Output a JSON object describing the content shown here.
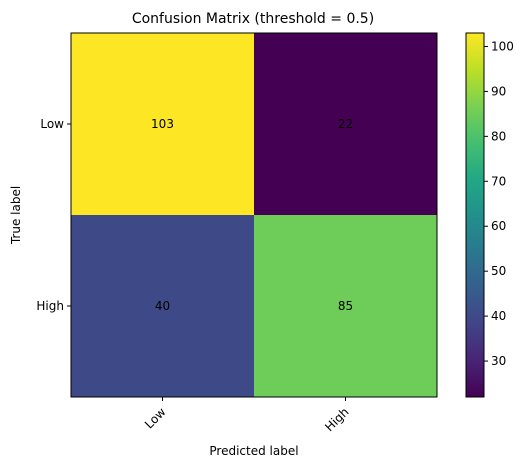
{
  "chart_data": {
    "type": "heatmap",
    "title": "Confusion Matrix (threshold = 0.5)",
    "xlabel": "Predicted label",
    "ylabel": "True label",
    "x_categories": [
      "Low",
      "High"
    ],
    "y_categories": [
      "Low",
      "High"
    ],
    "matrix": [
      [
        103,
        22
      ],
      [
        40,
        85
      ]
    ],
    "colormap": "viridis",
    "colorbar": {
      "range": [
        22,
        103
      ],
      "ticks": [
        30,
        40,
        50,
        60,
        70,
        80,
        90,
        100
      ]
    },
    "grid": false,
    "x_tick_rotation_deg": 45
  }
}
